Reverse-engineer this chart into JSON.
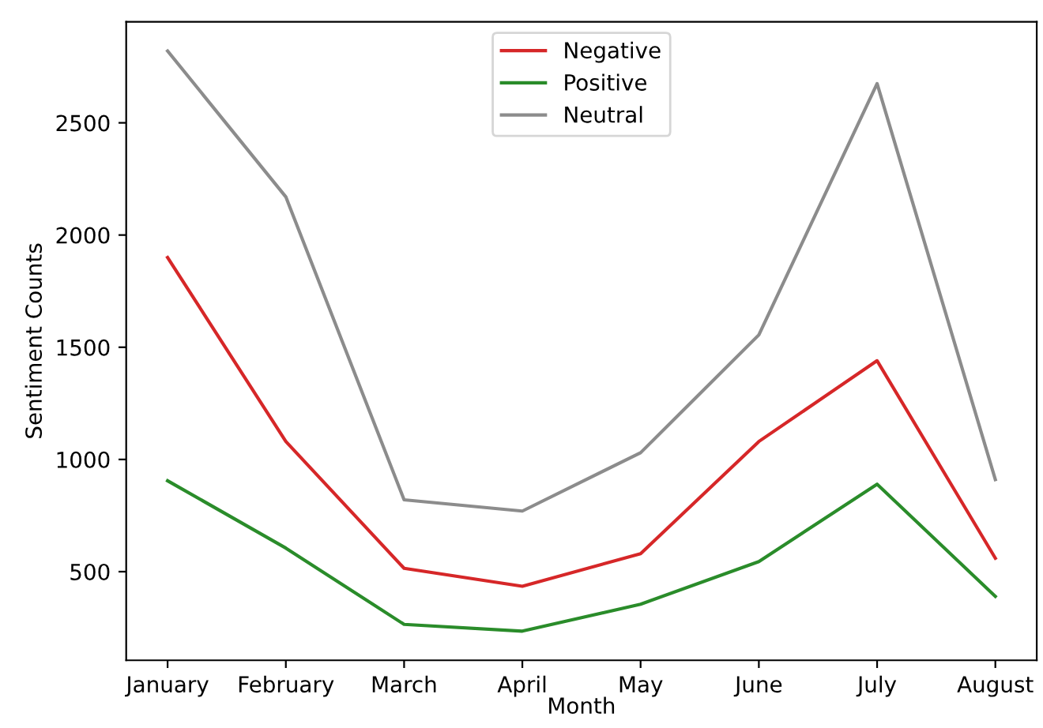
{
  "chart_data": {
    "type": "line",
    "xlabel": "Month",
    "ylabel": "Sentiment Counts",
    "categories": [
      "January",
      "February",
      "March",
      "April",
      "May",
      "June",
      "July",
      "August"
    ],
    "series": [
      {
        "name": "Negative",
        "color": "#d62728",
        "values": [
          1900,
          1080,
          515,
          435,
          580,
          1080,
          1440,
          560
        ]
      },
      {
        "name": "Positive",
        "color": "#2a8c2a",
        "values": [
          905,
          605,
          265,
          235,
          355,
          545,
          890,
          390
        ]
      },
      {
        "name": "Neutral",
        "color": "#8c8c8c",
        "values": [
          2820,
          2170,
          820,
          770,
          1030,
          1555,
          2675,
          910
        ]
      }
    ],
    "ylim": [
      105,
      2950
    ],
    "yticks": [
      500,
      1000,
      1500,
      2000,
      2500
    ],
    "grid": false,
    "legend": "top",
    "marker": "none",
    "line_style": "solid"
  }
}
